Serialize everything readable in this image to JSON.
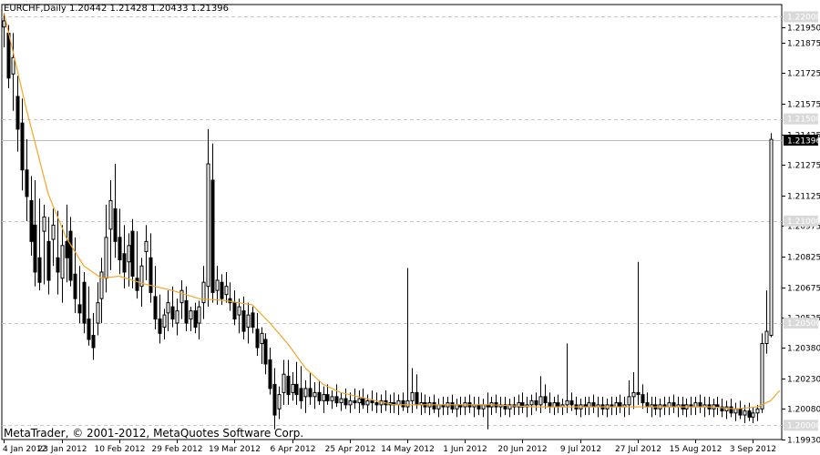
{
  "header": {
    "symbol": "EURCHF,Daily",
    "ohlc": "1.20442 1.21428 1.20433 1.21396"
  },
  "copyright": "MetaTrader, © 2001-2012, MetaQuotes Software Corp.",
  "colors": {
    "background": "#ffffff",
    "candle": "#000000",
    "moving_average": "#f5a623",
    "grid": "#c8c8c8",
    "level_line": "#bdbdbd",
    "price_box": "#000000",
    "level_box": "#d9d9d9"
  },
  "chart_data": {
    "type": "candlestick",
    "title": "",
    "ylim": [
      1.1993,
      1.2206
    ],
    "y_ticks": [
      "1.21950",
      "1.21875",
      "1.21725",
      "1.21575",
      "1.21425",
      "1.21275",
      "1.21125",
      "1.20975",
      "1.20825",
      "1.20675",
      "1.20525",
      "1.20380",
      "1.20230",
      "1.20080",
      "1.19930"
    ],
    "level_lines": [
      "1.22000",
      "1.21500",
      "1.21000",
      "1.20500",
      "1.20000"
    ],
    "current_price": "1.21396",
    "x_ticks": [
      "4 Jan 2012",
      "23 Jan 2012",
      "10 Feb 2012",
      "29 Feb 2012",
      "19 Mar 2012",
      "6 Apr 2012",
      "25 Apr 2012",
      "14 May 2012",
      "1 Jun 2012",
      "20 Jun 2012",
      "9 Jul 2012",
      "27 Jul 2012",
      "15 Aug 2012",
      "3 Sep 2012"
    ],
    "x_tick_index": [
      0,
      13,
      26,
      39,
      52,
      65,
      78,
      91,
      104,
      117,
      130,
      143,
      156,
      169
    ],
    "bar_count": 176,
    "moving_average": {
      "points": [
        [
          0,
          1.2202
        ],
        [
          5,
          1.2155
        ],
        [
          10,
          1.2113
        ],
        [
          14,
          1.2092
        ],
        [
          18,
          1.2078
        ],
        [
          22,
          1.2072
        ],
        [
          26,
          1.2073
        ],
        [
          32,
          1.2069
        ],
        [
          38,
          1.2066
        ],
        [
          44,
          1.2062
        ],
        [
          50,
          1.2061
        ],
        [
          56,
          1.2059
        ],
        [
          60,
          1.205
        ],
        [
          64,
          1.204
        ],
        [
          68,
          1.2028
        ],
        [
          72,
          1.202
        ],
        [
          76,
          1.2016
        ],
        [
          80,
          1.2014
        ],
        [
          84,
          1.2012
        ],
        [
          88,
          1.201
        ],
        [
          92,
          1.201
        ],
        [
          100,
          1.201
        ],
        [
          110,
          1.201
        ],
        [
          120,
          1.2009
        ],
        [
          130,
          1.2009
        ],
        [
          140,
          1.2009
        ],
        [
          150,
          1.2009
        ],
        [
          160,
          1.2009
        ],
        [
          165,
          1.2008
        ],
        [
          170,
          1.2009
        ],
        [
          173,
          1.2012
        ],
        [
          175,
          1.2017
        ]
      ]
    },
    "candles": [
      [
        0,
        1.2195,
        1.2202,
        1.2185,
        1.2198
      ],
      [
        1,
        1.2192,
        1.2196,
        1.2165,
        1.217
      ],
      [
        2,
        1.2172,
        1.2192,
        1.2154,
        1.218
      ],
      [
        3,
        1.2161,
        1.2171,
        1.2134,
        1.2145
      ],
      [
        4,
        1.2148,
        1.216,
        1.2115,
        1.2125
      ],
      [
        5,
        1.2125,
        1.214,
        1.21,
        1.2112
      ],
      [
        6,
        1.211,
        1.2122,
        1.2083,
        1.209
      ],
      [
        7,
        1.2098,
        1.212,
        1.2068,
        1.2075
      ],
      [
        8,
        1.2082,
        1.2111,
        1.2066,
        1.207
      ],
      [
        9,
        1.2095,
        1.2108,
        1.2069,
        1.2102
      ],
      [
        10,
        1.209,
        1.2102,
        1.2064,
        1.2071
      ],
      [
        11,
        1.2091,
        1.2106,
        1.2078,
        1.2098
      ],
      [
        12,
        1.2082,
        1.2105,
        1.2064,
        1.2075
      ],
      [
        13,
        1.2072,
        1.2098,
        1.206,
        1.2088
      ],
      [
        14,
        1.209,
        1.2108,
        1.207,
        1.2082
      ],
      [
        15,
        1.2095,
        1.2102,
        1.2068,
        1.2071
      ],
      [
        16,
        1.2074,
        1.2092,
        1.2055,
        1.2062
      ],
      [
        17,
        1.2059,
        1.2078,
        1.205,
        1.2055
      ],
      [
        18,
        1.207,
        1.2075,
        1.2045,
        1.205
      ],
      [
        19,
        1.2052,
        1.2068,
        1.2039,
        1.2042
      ],
      [
        20,
        1.2044,
        1.2055,
        1.2032,
        1.2038
      ],
      [
        21,
        1.205,
        1.207,
        1.2044,
        1.206
      ],
      [
        22,
        1.2062,
        1.2082,
        1.205,
        1.2075
      ],
      [
        23,
        1.2072,
        1.2108,
        1.2065,
        1.2092
      ],
      [
        24,
        1.2096,
        1.212,
        1.2076,
        1.211
      ],
      [
        25,
        1.2106,
        1.2128,
        1.2082,
        1.209
      ],
      [
        26,
        1.2092,
        1.2106,
        1.2074,
        1.2081
      ],
      [
        27,
        1.2084,
        1.2098,
        1.2067,
        1.2075
      ],
      [
        28,
        1.208,
        1.2094,
        1.2068,
        1.2088
      ],
      [
        29,
        1.2095,
        1.2101,
        1.2067,
        1.2073
      ],
      [
        30,
        1.2072,
        1.2095,
        1.2062,
        1.2066
      ],
      [
        31,
        1.2068,
        1.2082,
        1.2058,
        1.2078
      ],
      [
        32,
        1.2085,
        1.2098,
        1.2071,
        1.209
      ],
      [
        33,
        1.2082,
        1.2094,
        1.206,
        1.2065
      ],
      [
        34,
        1.2063,
        1.2078,
        1.2047,
        1.2052
      ],
      [
        35,
        1.2052,
        1.2064,
        1.204,
        1.2045
      ],
      [
        36,
        1.2048,
        1.2057,
        1.2042,
        1.2054
      ],
      [
        37,
        1.2055,
        1.2066,
        1.2046,
        1.206
      ],
      [
        38,
        1.2058,
        1.2068,
        1.2048,
        1.2052
      ],
      [
        39,
        1.205,
        1.2062,
        1.2044,
        1.2056
      ],
      [
        40,
        1.206,
        1.2071,
        1.2052,
        1.2066
      ],
      [
        41,
        1.2061,
        1.2068,
        1.2046,
        1.205
      ],
      [
        42,
        1.2052,
        1.2058,
        1.2046,
        1.2056
      ],
      [
        43,
        1.2056,
        1.206,
        1.2045,
        1.2048
      ],
      [
        44,
        1.205,
        1.2061,
        1.2042,
        1.2058
      ],
      [
        45,
        1.206,
        1.2078,
        1.2052,
        1.207
      ],
      [
        46,
        1.2068,
        1.2145,
        1.2058,
        1.2128
      ],
      [
        47,
        1.212,
        1.2138,
        1.206,
        1.2065
      ],
      [
        48,
        1.2066,
        1.2078,
        1.2059,
        1.2071
      ],
      [
        49,
        1.207,
        1.2074,
        1.2059,
        1.2062
      ],
      [
        50,
        1.2064,
        1.2075,
        1.206,
        1.2068
      ],
      [
        51,
        1.2062,
        1.207,
        1.2056,
        1.206
      ],
      [
        52,
        1.206,
        1.2066,
        1.2049,
        1.2052
      ],
      [
        53,
        1.2054,
        1.2062,
        1.2045,
        1.2058
      ],
      [
        54,
        1.2056,
        1.2063,
        1.2042,
        1.2046
      ],
      [
        55,
        1.2048,
        1.206,
        1.204,
        1.2054
      ],
      [
        56,
        1.2055,
        1.2058,
        1.2045,
        1.2048
      ],
      [
        57,
        1.2047,
        1.2055,
        1.2034,
        1.2038
      ],
      [
        58,
        1.204,
        1.2048,
        1.203,
        1.2045
      ],
      [
        59,
        1.2042,
        1.2045,
        1.2025,
        1.203
      ],
      [
        60,
        1.2032,
        1.2038,
        1.2015,
        1.2018
      ],
      [
        61,
        1.202,
        1.2028,
        1.1998,
        1.2005
      ],
      [
        62,
        1.2008,
        1.2019,
        1.2003,
        1.2015
      ],
      [
        63,
        1.2016,
        1.2032,
        1.201,
        1.2025
      ],
      [
        64,
        1.2024,
        1.2032,
        1.201,
        1.2015
      ],
      [
        65,
        1.2016,
        1.2026,
        1.2012,
        1.202
      ],
      [
        66,
        1.202,
        1.2031,
        1.201,
        1.2015
      ],
      [
        67,
        1.2018,
        1.2029,
        1.2008,
        1.2012
      ],
      [
        68,
        1.2014,
        1.2022,
        1.2006,
        1.2018
      ],
      [
        69,
        1.2018,
        1.2026,
        1.201,
        1.2014
      ],
      [
        70,
        1.2014,
        1.2021,
        1.2008,
        1.2016
      ],
      [
        71,
        1.2016,
        1.2022,
        1.201,
        1.2012
      ],
      [
        72,
        1.2012,
        1.2019,
        1.2006,
        1.2015
      ],
      [
        73,
        1.2015,
        1.202,
        1.201,
        1.2012
      ],
      [
        74,
        1.2012,
        1.2017,
        1.2008,
        1.2014
      ],
      [
        75,
        1.2014,
        1.202,
        1.2009,
        1.2011
      ],
      [
        76,
        1.2011,
        1.2016,
        1.2007,
        1.2013
      ],
      [
        77,
        1.2013,
        1.2018,
        1.2008,
        1.201
      ],
      [
        78,
        1.201,
        1.2016,
        1.2006,
        1.2012
      ],
      [
        79,
        1.2012,
        1.2018,
        1.2008,
        1.2011
      ],
      [
        80,
        1.2011,
        1.2017,
        1.2006,
        1.2013
      ],
      [
        81,
        1.2013,
        1.2018,
        1.2008,
        1.201
      ],
      [
        82,
        1.201,
        1.2015,
        1.2006,
        1.2012
      ],
      [
        83,
        1.2012,
        1.2017,
        1.2007,
        1.2011
      ],
      [
        84,
        1.2011,
        1.2016,
        1.2006,
        1.201
      ],
      [
        85,
        1.201,
        1.2015,
        1.2006,
        1.2012
      ],
      [
        86,
        1.2012,
        1.2017,
        1.2007,
        1.201
      ],
      [
        87,
        1.201,
        1.2015,
        1.2006,
        1.2011
      ],
      [
        88,
        1.2011,
        1.2016,
        1.2006,
        1.201
      ],
      [
        89,
        1.201,
        1.2015,
        1.2005,
        1.2012
      ],
      [
        90,
        1.2012,
        1.2016,
        1.2007,
        1.2009
      ],
      [
        91,
        1.2009,
        1.2077,
        1.2006,
        1.2012
      ],
      [
        92,
        1.2012,
        1.2028,
        1.2006,
        1.2016
      ],
      [
        93,
        1.2016,
        1.2025,
        1.2008,
        1.201
      ],
      [
        94,
        1.201,
        1.2016,
        1.2005,
        1.2011
      ],
      [
        95,
        1.2011,
        1.2015,
        1.2006,
        1.2009
      ],
      [
        96,
        1.2009,
        1.2014,
        1.2005,
        1.2011
      ],
      [
        97,
        1.2011,
        1.2015,
        1.2006,
        1.2008
      ],
      [
        98,
        1.2008,
        1.2013,
        1.2004,
        1.201
      ],
      [
        99,
        1.201,
        1.2014,
        1.2005,
        1.2009
      ],
      [
        100,
        1.2009,
        1.2014,
        1.2005,
        1.2011
      ],
      [
        101,
        1.2011,
        1.2015,
        1.2006,
        1.2008
      ],
      [
        102,
        1.2008,
        1.2013,
        1.2004,
        1.201
      ],
      [
        103,
        1.201,
        1.2014,
        1.2005,
        1.2009
      ],
      [
        104,
        1.2009,
        1.2014,
        1.2005,
        1.2011
      ],
      [
        105,
        1.2011,
        1.2015,
        1.2006,
        1.2009
      ],
      [
        106,
        1.2009,
        1.2014,
        1.2004,
        1.201
      ],
      [
        107,
        1.201,
        1.2014,
        1.2005,
        1.2008
      ],
      [
        108,
        1.2008,
        1.2013,
        1.2004,
        1.201
      ],
      [
        109,
        1.201,
        1.2016,
        1.1998,
        1.2009
      ],
      [
        110,
        1.2009,
        1.2014,
        1.2005,
        1.2011
      ],
      [
        111,
        1.2011,
        1.2015,
        1.2006,
        1.2009
      ],
      [
        112,
        1.2009,
        1.2014,
        1.2004,
        1.201
      ],
      [
        113,
        1.201,
        1.2014,
        1.2005,
        1.2008
      ],
      [
        114,
        1.2008,
        1.2013,
        1.2004,
        1.201
      ],
      [
        115,
        1.201,
        1.2014,
        1.2005,
        1.2009
      ],
      [
        116,
        1.2009,
        1.2015,
        1.2005,
        1.2011
      ],
      [
        117,
        1.2011,
        1.2016,
        1.2006,
        1.2009
      ],
      [
        118,
        1.2009,
        1.2014,
        1.2004,
        1.201
      ],
      [
        119,
        1.201,
        1.2015,
        1.2005,
        1.2012
      ],
      [
        120,
        1.2012,
        1.2016,
        1.2007,
        1.201
      ],
      [
        121,
        1.201,
        1.2024,
        1.2006,
        1.2014
      ],
      [
        122,
        1.2014,
        1.202,
        1.2008,
        1.2011
      ],
      [
        123,
        1.2011,
        1.2016,
        1.2006,
        1.2009
      ],
      [
        124,
        1.2009,
        1.2014,
        1.2005,
        1.2011
      ],
      [
        125,
        1.2011,
        1.2015,
        1.2006,
        1.2009
      ],
      [
        126,
        1.2009,
        1.2013,
        1.2005,
        1.201
      ],
      [
        127,
        1.201,
        1.204,
        1.2006,
        1.2012
      ],
      [
        128,
        1.2012,
        1.2016,
        1.2007,
        1.201
      ],
      [
        129,
        1.201,
        1.2014,
        1.2005,
        1.2008
      ],
      [
        130,
        1.2008,
        1.2013,
        1.2004,
        1.201
      ],
      [
        131,
        1.201,
        1.2014,
        1.2005,
        1.2009
      ],
      [
        132,
        1.2009,
        1.2014,
        1.2005,
        1.2011
      ],
      [
        133,
        1.2011,
        1.2015,
        1.2006,
        1.2009
      ],
      [
        134,
        1.2009,
        1.2014,
        1.2004,
        1.201
      ],
      [
        135,
        1.201,
        1.2014,
        1.2005,
        1.2008
      ],
      [
        136,
        1.2008,
        1.2013,
        1.2004,
        1.201
      ],
      [
        137,
        1.201,
        1.2014,
        1.2005,
        1.2009
      ],
      [
        138,
        1.2009,
        1.2014,
        1.2005,
        1.2011
      ],
      [
        139,
        1.2011,
        1.2015,
        1.2006,
        1.2009
      ],
      [
        140,
        1.2009,
        1.2014,
        1.2004,
        1.201
      ],
      [
        141,
        1.201,
        1.2022,
        1.2005,
        1.2014
      ],
      [
        142,
        1.2014,
        1.2026,
        1.2008,
        1.2016
      ],
      [
        143,
        1.2016,
        1.208,
        1.201,
        1.2015
      ],
      [
        144,
        1.2015,
        1.202,
        1.2008,
        1.2011
      ],
      [
        145,
        1.2011,
        1.2016,
        1.2006,
        1.2009
      ],
      [
        146,
        1.2009,
        1.2014,
        1.2004,
        1.201
      ],
      [
        147,
        1.201,
        1.2014,
        1.2005,
        1.2008
      ],
      [
        148,
        1.2008,
        1.2013,
        1.2004,
        1.201
      ],
      [
        149,
        1.201,
        1.2014,
        1.2005,
        1.2009
      ],
      [
        150,
        1.2009,
        1.2014,
        1.2005,
        1.2011
      ],
      [
        151,
        1.2011,
        1.2015,
        1.2006,
        1.2009
      ],
      [
        152,
        1.2009,
        1.2014,
        1.2004,
        1.201
      ],
      [
        153,
        1.201,
        1.2014,
        1.2005,
        1.2008
      ],
      [
        154,
        1.2008,
        1.2013,
        1.2004,
        1.201
      ],
      [
        155,
        1.201,
        1.2014,
        1.2005,
        1.2009
      ],
      [
        156,
        1.2009,
        1.2014,
        1.2005,
        1.2011
      ],
      [
        157,
        1.2011,
        1.2015,
        1.2006,
        1.2009
      ],
      [
        158,
        1.2009,
        1.2014,
        1.2004,
        1.201
      ],
      [
        159,
        1.201,
        1.2014,
        1.2005,
        1.2008
      ],
      [
        160,
        1.2008,
        1.2013,
        1.2004,
        1.201
      ],
      [
        161,
        1.201,
        1.2014,
        1.2005,
        1.2009
      ],
      [
        162,
        1.2009,
        1.2013,
        1.2004,
        1.2007
      ],
      [
        163,
        1.2007,
        1.2012,
        1.2003,
        1.2009
      ],
      [
        164,
        1.2009,
        1.2013,
        1.2004,
        1.2006
      ],
      [
        165,
        1.2006,
        1.2011,
        1.2002,
        1.2008
      ],
      [
        166,
        1.2008,
        1.2012,
        1.2003,
        1.2005
      ],
      [
        167,
        1.2005,
        1.201,
        1.2001,
        1.2007
      ],
      [
        168,
        1.2007,
        1.2011,
        1.2002,
        1.2004
      ],
      [
        169,
        1.2004,
        1.2009,
        1.2001,
        1.2006
      ],
      [
        170,
        1.2006,
        1.201,
        1.2002,
        1.2008
      ],
      [
        171,
        1.2008,
        1.2045,
        1.2006,
        1.204
      ],
      [
        172,
        1.204,
        1.2066,
        1.2035,
        1.2046
      ],
      [
        173,
        1.2044,
        1.2143,
        1.2043,
        1.214
      ]
    ]
  }
}
